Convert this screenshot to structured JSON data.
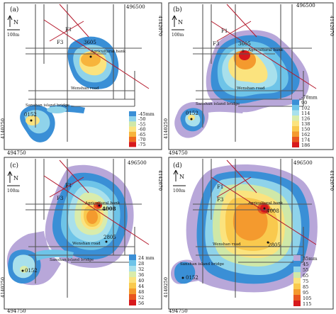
{
  "panels": {
    "a": {
      "letter": "(a)",
      "coord_top": "496500",
      "coord_right": "4142070",
      "coord_left": "4140250",
      "coord_bottom": "494750",
      "scale": "100m",
      "north": "N",
      "fault1": "F1",
      "fault3": "F3",
      "point_main": "3605",
      "point_sw": "0152",
      "place_bank": "Agricultural bank",
      "place_road": "Wenshan road",
      "place_bridge": "Sanshan island bridge",
      "legend": [
        "-45mm",
        "-50",
        "-55",
        "-60",
        "-65",
        "-70",
        "-75"
      ]
    },
    "b": {
      "letter": "(b)",
      "coord_top": "496500",
      "coord_right": "4142070",
      "coord_left": "4140250",
      "coord_bottom": "494750",
      "scale": "100m",
      "north": "N",
      "fault1": "F1",
      "fault3": "F3",
      "point_main": "3605",
      "point_sw": "0152",
      "place_bank": "Agricultural bank",
      "place_road": "Wenshan road",
      "place_bridge": "Sanshan island bridge",
      "legend": [
        "-78mm",
        "90",
        "102",
        "114",
        "126",
        "138",
        "150",
        "162",
        "174",
        "186"
      ]
    },
    "c": {
      "letter": "(c)",
      "coord_top": "496500",
      "coord_right": "4142070",
      "coord_left": "4140250",
      "coord_bottom": "494750",
      "scale": "100m",
      "north": "N",
      "fault1": "F1",
      "fault3": "F3",
      "point_main": "4008",
      "point_mid": "2805",
      "point_sw": "0152",
      "place_bank": "Agricultural bank",
      "place_road": "Wenshan road",
      "place_bridge": "Sanshan island bridge",
      "legend": [
        "24 mm",
        "28",
        "32",
        "36",
        "40",
        "44",
        "48",
        "52",
        "56"
      ]
    },
    "d": {
      "letter": "(d)",
      "coord_top": "496500",
      "coord_right": "4142070",
      "coord_left": "4140250",
      "coord_bottom": "494750",
      "scale": "100m",
      "north": "N",
      "fault1": "F1",
      "fault3": "F3",
      "point_main": "4008",
      "point_mid": "2805",
      "point_sw": "0152",
      "place_bank": "Agricultural bank",
      "place_road": "Wenshan road",
      "place_bridge": "Sanshan island bridge",
      "legend": [
        "35mm",
        "45",
        "55",
        "65",
        "75",
        "85",
        "95",
        "105",
        "115"
      ]
    }
  },
  "colors": {
    "legend_a": [
      "#3a8fd6",
      "#8fd3ea",
      "#cfe8a8",
      "#fbe37e",
      "#f7b43c",
      "#ef6a1e",
      "#d7191c"
    ],
    "legend_b": [
      "#b8a7d9",
      "#3a8fd6",
      "#6ec4e8",
      "#a8e0ec",
      "#d9ecac",
      "#fbe37e",
      "#f9c94e",
      "#f49a2e",
      "#e8561f",
      "#d7191c"
    ],
    "legend_c": [
      "#3a8fd6",
      "#6ec4e8",
      "#a8e0ec",
      "#d9ecac",
      "#fbe37e",
      "#f9c94e",
      "#f49a2e",
      "#e8561f",
      "#d7191c"
    ],
    "legend_d": [
      "#b8a7d9",
      "#3a8fd6",
      "#8fd3ea",
      "#cfe8a8",
      "#fbe37e",
      "#f9c94e",
      "#f49a2e",
      "#e8561f",
      "#d7191c"
    ]
  }
}
